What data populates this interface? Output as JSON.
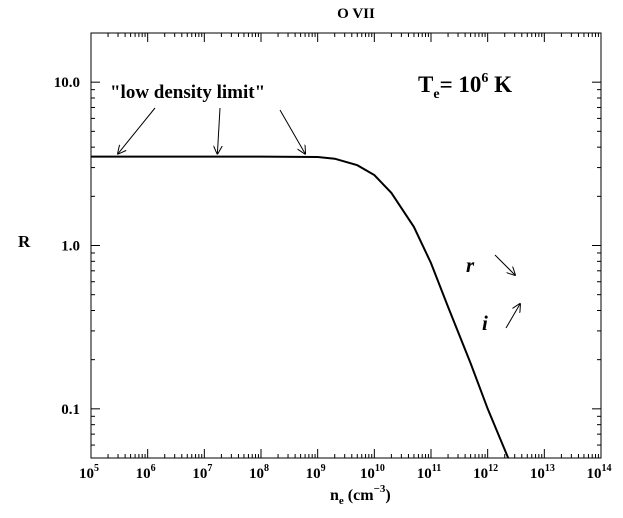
{
  "chart_data": {
    "type": "line",
    "title": "O VII",
    "xlabel": {
      "base": "n",
      "sub": "e",
      "rest": " (cm",
      "sup": "−3",
      "end": ")"
    },
    "ylabel": "R",
    "x_scale": "log",
    "y_scale": "log",
    "xlim": [
      100000.0,
      100000000000000.0
    ],
    "ylim": [
      0.05,
      20
    ],
    "x_tick_exponents": [
      5,
      6,
      7,
      8,
      9,
      10,
      11,
      12,
      13,
      14
    ],
    "x_tick_base": "10",
    "y_ticks": [
      {
        "value": 0.1,
        "label": "0.1"
      },
      {
        "value": 1.0,
        "label": "1.0"
      },
      {
        "value": 10.0,
        "label": "10.0"
      }
    ],
    "grid": false,
    "series": [
      {
        "points": [
          [
            100000.0,
            3.5
          ],
          [
            1000000.0,
            3.5
          ],
          [
            10000000.0,
            3.5
          ],
          [
            100000000.0,
            3.5
          ],
          [
            1000000000.0,
            3.48
          ],
          [
            2000000000.0,
            3.4
          ],
          [
            5000000000.0,
            3.1
          ],
          [
            10000000000.0,
            2.7
          ],
          [
            20000000000.0,
            2.1
          ],
          [
            50000000000.0,
            1.3
          ],
          [
            100000000000.0,
            0.78
          ],
          [
            200000000000.0,
            0.42
          ],
          [
            500000000000.0,
            0.19
          ],
          [
            1000000000000.0,
            0.1
          ],
          [
            2300000000000.0,
            0.05
          ]
        ]
      }
    ],
    "annotations": {
      "low_density_label": "\"low density limit\"",
      "low_density_arrow_targets": [
        [
          300000.0,
          3.5
        ],
        [
          17000000.0,
          3.5
        ],
        [
          600000000.0,
          3.5
        ]
      ],
      "temperature": {
        "base": "T",
        "sub": "e",
        "eq": "= 10",
        "sup": "6",
        "unit": " K"
      },
      "r_label": "r",
      "i_label": "i"
    }
  }
}
